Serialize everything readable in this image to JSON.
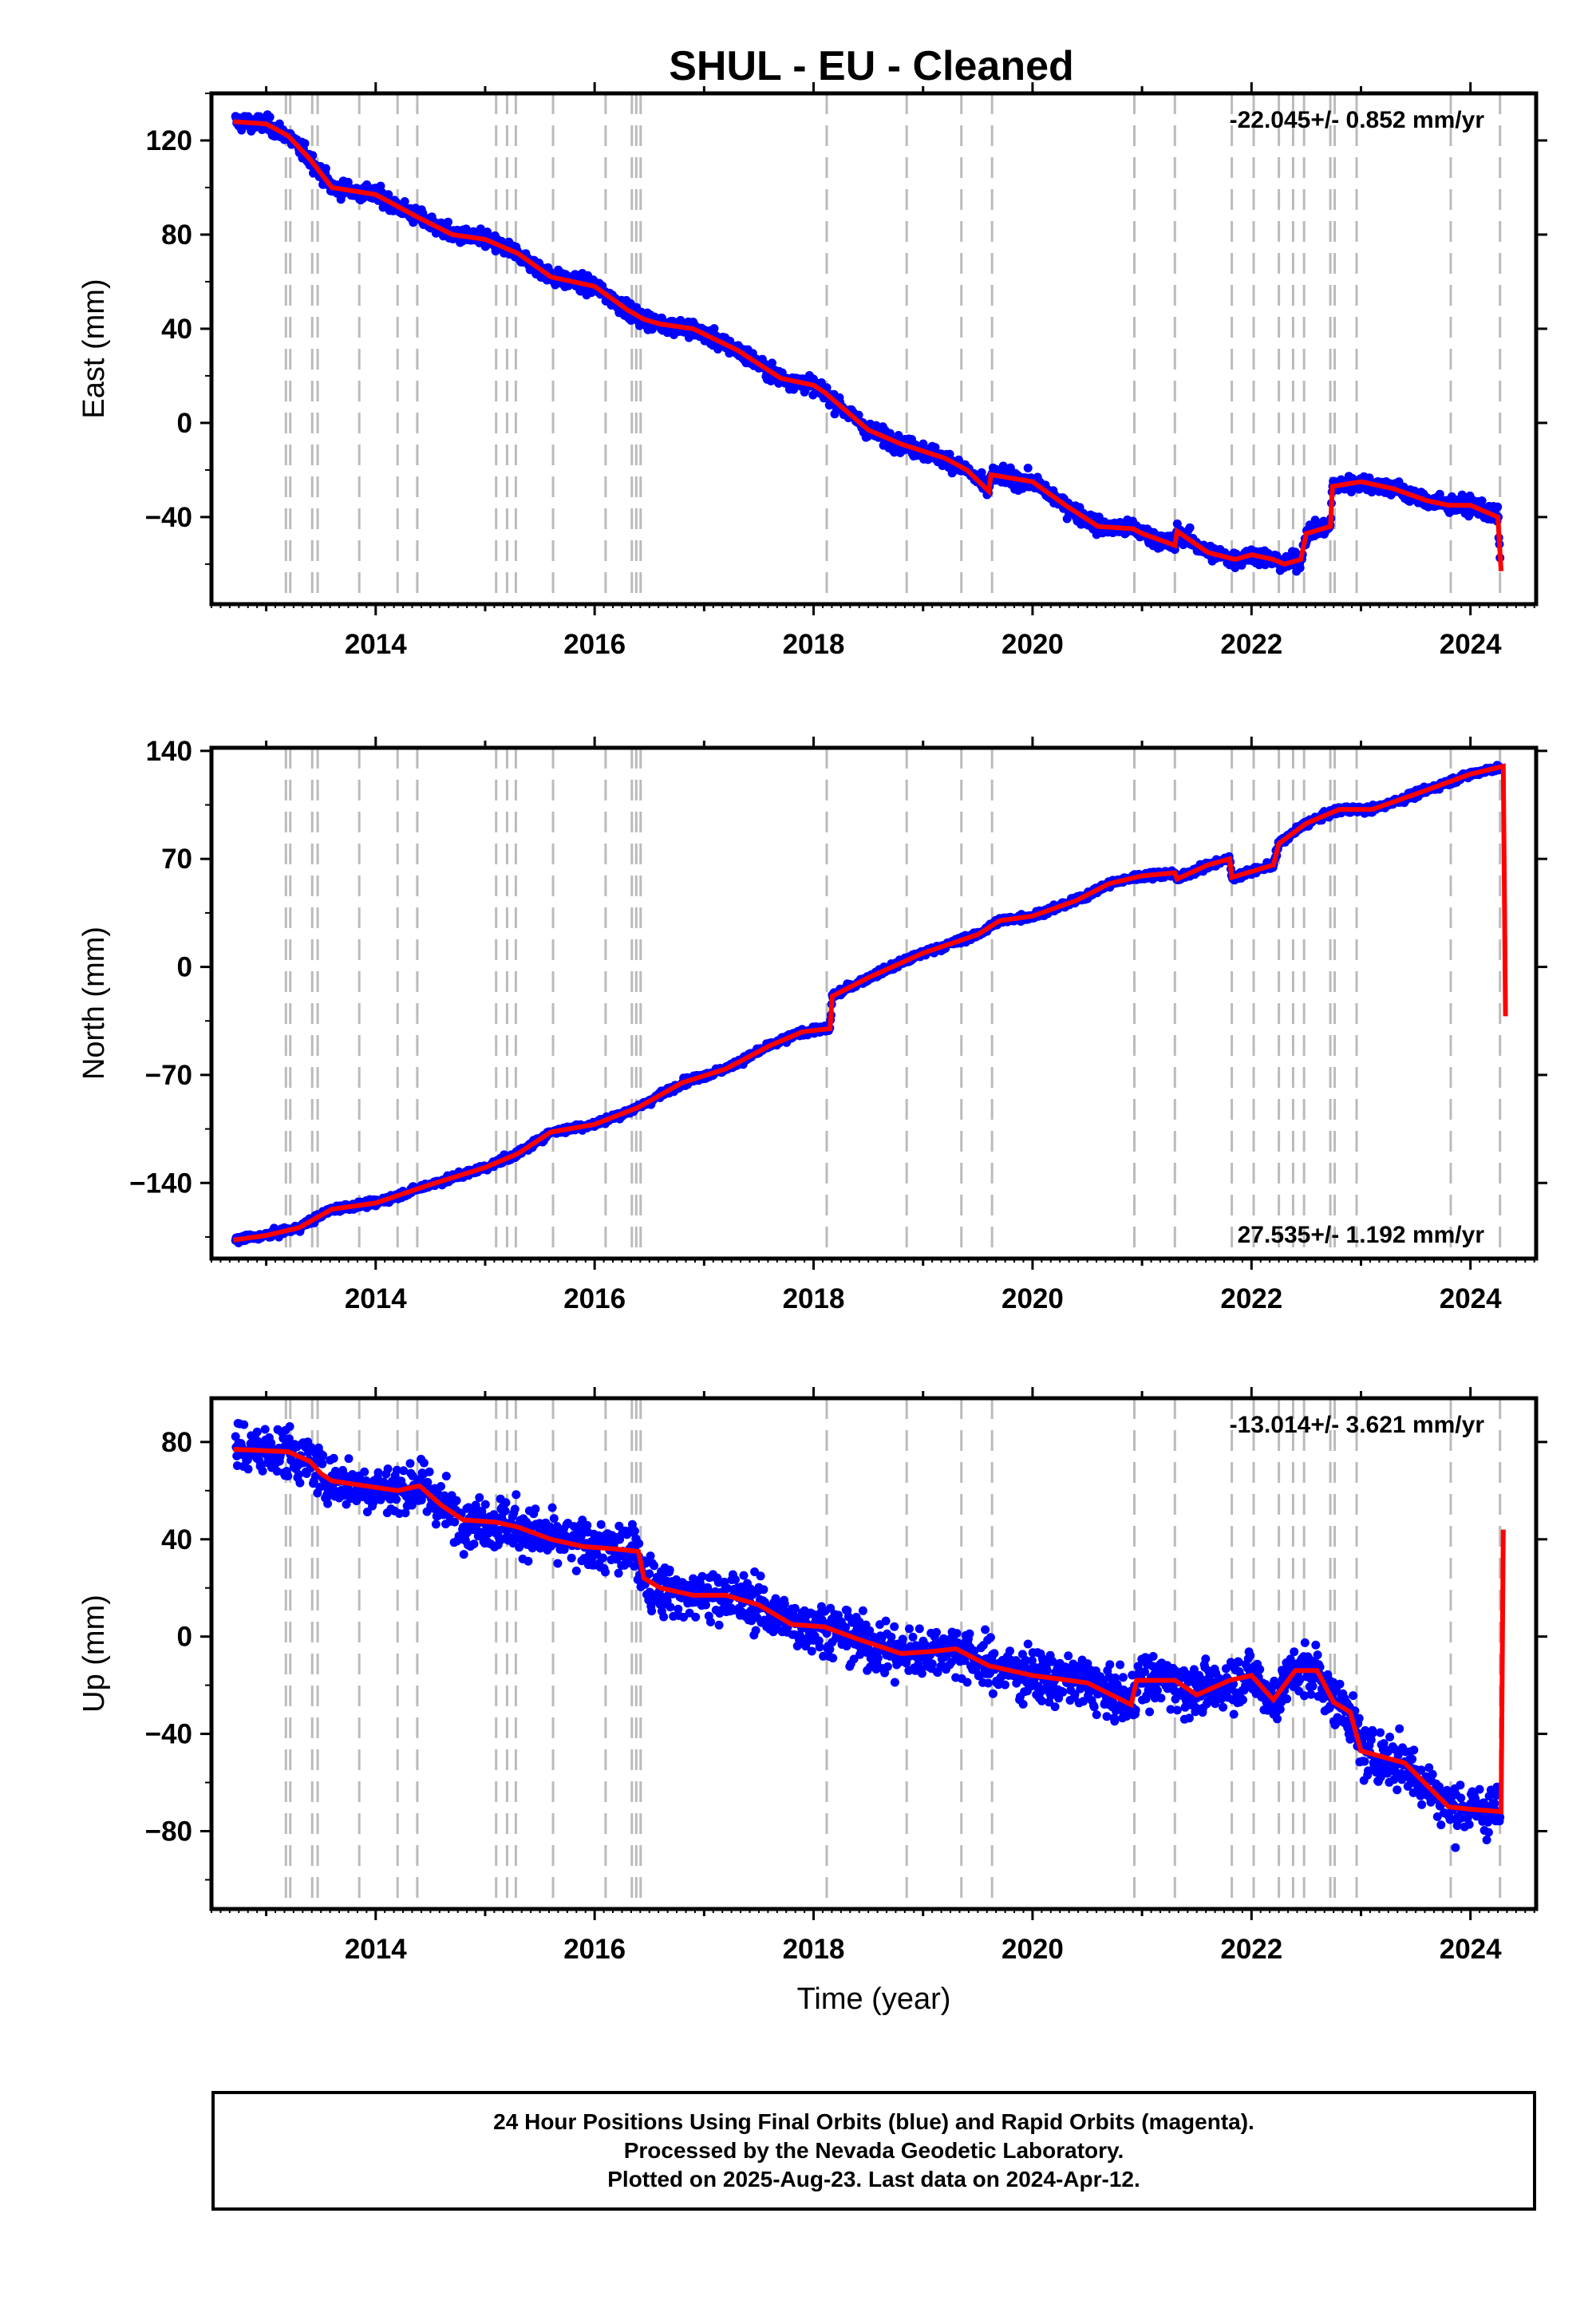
{
  "chart_data": [
    {
      "type": "scatter",
      "panel": "east",
      "title": "SHUL  - EU - Cleaned",
      "xlabel": "",
      "ylabel": "East (mm)",
      "xlim": [
        2012.5,
        2024.6
      ],
      "ylim": [
        -77,
        140
      ],
      "xticks": [
        2014,
        2016,
        2018,
        2020,
        2022,
        2024
      ],
      "yticks": [
        -40,
        0,
        40,
        80,
        120
      ],
      "rate_label": "-22.045+/- 0.852 mm/yr",
      "grid": false,
      "series": [
        {
          "color": "#0000ff",
          "style": "points"
        },
        {
          "color": "#ff0000",
          "style": "line",
          "x": [
            2012.7,
            2013.0,
            2013.2,
            2013.4,
            2013.6,
            2014.0,
            2014.4,
            2014.7,
            2015.0,
            2015.3,
            2015.6,
            2016.0,
            2016.3,
            2016.45,
            2016.6,
            2016.9,
            2017.3,
            2017.7,
            2018.0,
            2018.1,
            2018.5,
            2018.8,
            2019.2,
            2019.4,
            2019.6,
            2019.62,
            2020.0,
            2020.3,
            2020.6,
            2020.92,
            2021.0,
            2021.3,
            2021.32,
            2021.6,
            2021.85,
            2022.0,
            2022.2,
            2022.3,
            2022.45,
            2022.5,
            2022.72,
            2022.74,
            2023.0,
            2023.3,
            2023.6,
            2023.8,
            2024.0,
            2024.25,
            2024.28
          ],
          "y": [
            128,
            127,
            122,
            112,
            100,
            97,
            87,
            80,
            78,
            72,
            62,
            58,
            48,
            44,
            42,
            40,
            31,
            19,
            16,
            13,
            -3,
            -9,
            -15,
            -20,
            -29,
            -22,
            -25,
            -35,
            -44,
            -45,
            -47,
            -52,
            -46,
            -55,
            -58,
            -56,
            -58,
            -60,
            -58,
            -47,
            -44,
            -27,
            -25,
            -28,
            -33,
            -35,
            -35,
            -40,
            -63
          ]
        }
      ]
    },
    {
      "type": "scatter",
      "panel": "north",
      "xlabel": "",
      "ylabel": "North (mm)",
      "xlim": [
        2012.5,
        2024.6
      ],
      "ylim": [
        -189,
        142
      ],
      "xticks": [
        2014,
        2016,
        2018,
        2020,
        2022,
        2024
      ],
      "yticks": [
        -140,
        -70,
        0,
        70,
        140
      ],
      "rate_label": "27.535+/- 1.192 mm/yr",
      "grid": false,
      "series": [
        {
          "color": "#0000ff",
          "style": "points"
        },
        {
          "color": "#ff0000",
          "style": "line",
          "x": [
            2012.7,
            2013.0,
            2013.3,
            2013.6,
            2014.0,
            2014.5,
            2015.0,
            2015.3,
            2015.6,
            2016.0,
            2016.4,
            2016.8,
            2017.2,
            2017.6,
            2017.9,
            2018.15,
            2018.17,
            2018.5,
            2019.0,
            2019.5,
            2019.7,
            2020.0,
            2020.4,
            2020.7,
            2021.0,
            2021.3,
            2021.32,
            2021.6,
            2021.8,
            2021.82,
            2022.2,
            2022.25,
            2022.5,
            2022.8,
            2023.1,
            2023.5,
            2024.0,
            2024.3,
            2024.32
          ],
          "y": [
            -177,
            -174,
            -169,
            -157,
            -153,
            -141,
            -130,
            -121,
            -107,
            -102,
            -91,
            -75,
            -66,
            -51,
            -42,
            -40,
            -19,
            -7,
            9,
            21,
            30,
            33,
            43,
            54,
            59,
            61,
            57,
            66,
            70,
            58,
            66,
            80,
            93,
            102,
            102,
            112,
            125,
            130,
            -32
          ]
        }
      ]
    },
    {
      "type": "scatter",
      "panel": "up",
      "xlabel": "Time (year)",
      "ylabel": "Up (mm)",
      "xlim": [
        2012.5,
        2024.6
      ],
      "ylim": [
        -112,
        98
      ],
      "xticks": [
        2014,
        2016,
        2018,
        2020,
        2022,
        2024
      ],
      "yticks": [
        -80,
        -40,
        0,
        40,
        80
      ],
      "rate_label": "-13.014+/- 3.621 mm/yr",
      "grid": false,
      "series": [
        {
          "color": "#0000ff",
          "style": "points"
        },
        {
          "color": "#ff0000",
          "style": "line",
          "x": [
            2012.7,
            2013.2,
            2013.4,
            2013.5,
            2013.6,
            2013.9,
            2014.2,
            2014.4,
            2014.6,
            2014.8,
            2015.1,
            2015.3,
            2015.6,
            2015.9,
            2016.2,
            2016.4,
            2016.45,
            2016.6,
            2016.9,
            2017.2,
            2017.5,
            2017.8,
            2018.1,
            2018.4,
            2018.8,
            2019.1,
            2019.3,
            2019.6,
            2020.0,
            2020.5,
            2020.9,
            2020.95,
            2021.3,
            2021.5,
            2021.8,
            2022.0,
            2022.2,
            2022.4,
            2022.6,
            2022.75,
            2022.9,
            2023.0,
            2023.4,
            2023.8,
            2024.0,
            2024.28,
            2024.3
          ],
          "y": [
            77,
            76,
            72,
            67,
            64,
            62,
            60,
            62,
            54,
            48,
            47,
            45,
            40,
            37,
            36,
            35,
            24,
            20,
            17,
            17,
            13,
            5,
            4,
            -1,
            -7,
            -6,
            -5,
            -12,
            -16,
            -19,
            -28,
            -18,
            -18,
            -24,
            -18,
            -16,
            -26,
            -14,
            -14,
            -27,
            -31,
            -47,
            -52,
            -70,
            -71,
            -72,
            44
          ]
        }
      ]
    }
  ],
  "footer": {
    "line1": "24 Hour Positions Using Final Orbits (blue) and Rapid Orbits (magenta).",
    "line2": "Processed by the Nevada Geodetic Laboratory.",
    "line3": "Plotted on 2025-Aug-23. Last data on 2024-Apr-12."
  },
  "event_lines": [
    2013.18,
    2013.22,
    2013.42,
    2013.47,
    2013.85,
    2014.2,
    2014.38,
    2015.1,
    2015.2,
    2015.28,
    2015.62,
    2016.1,
    2016.34,
    2016.38,
    2016.42,
    2018.12,
    2018.85,
    2019.35,
    2019.63,
    2020.93,
    2021.3,
    2021.82,
    2022.02,
    2022.25,
    2022.38,
    2022.48,
    2022.72,
    2022.76,
    2022.96,
    2023.82,
    2024.27
  ],
  "colors": {
    "points": "#0000ff",
    "model": "#ff0000",
    "event_line": "#bbbbbb"
  }
}
